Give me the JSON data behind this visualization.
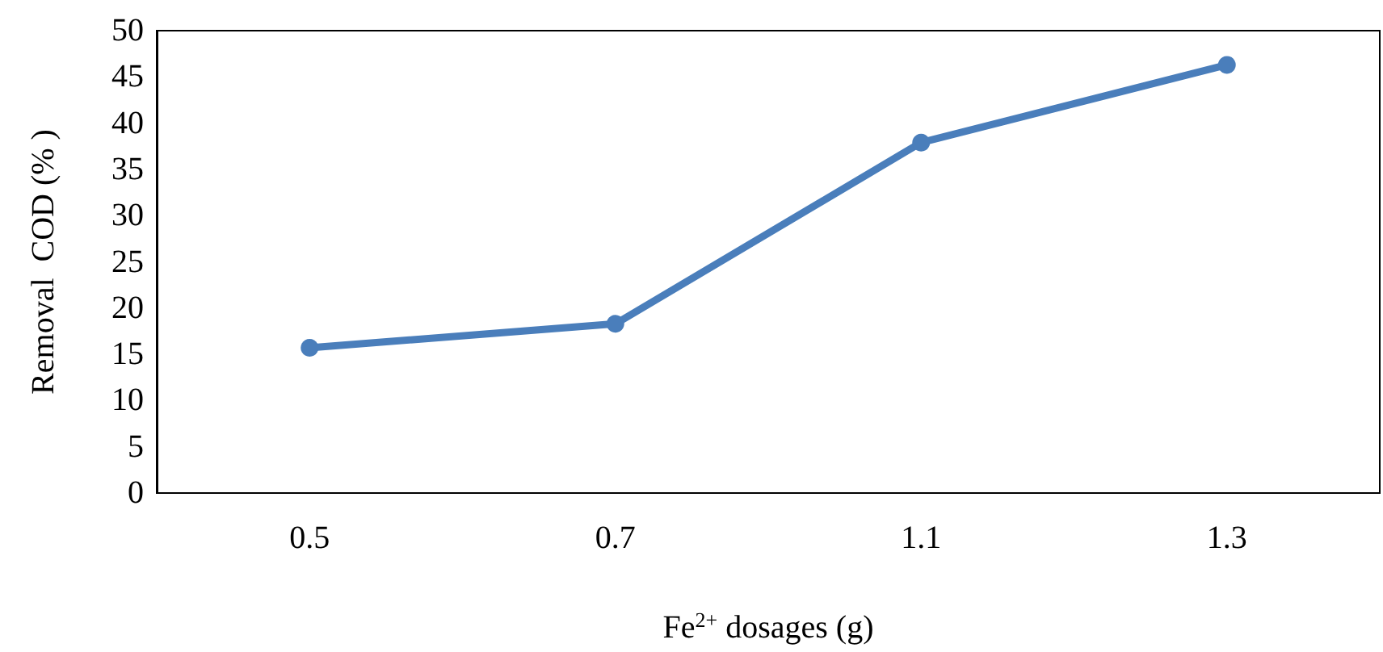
{
  "chart_data": {
    "type": "line",
    "xlabel": "Fe$^{2+}$ dosages (g)",
    "ylabel": "Removal  COD (% )",
    "categories": [
      "0.5",
      "0.7",
      "1.1",
      "1.3"
    ],
    "series": [
      {
        "color": "#4a7ebb",
        "values": [
          15.7,
          18.3,
          37.9,
          46.3
        ]
      }
    ],
    "ylim": [
      0,
      50
    ],
    "yticks": [
      0,
      5,
      10,
      15,
      20,
      25,
      30,
      35,
      40,
      45,
      50
    ],
    "grid": false,
    "marker": "circle",
    "line_style": "solid"
  }
}
